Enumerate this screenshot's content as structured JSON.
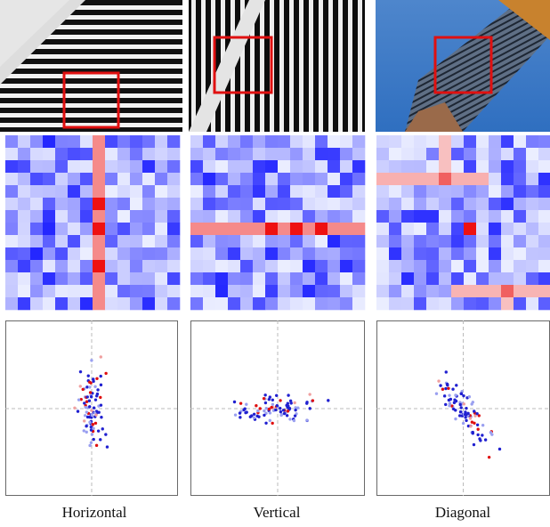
{
  "figure": {
    "captions": [
      "Horizontal",
      "Vertical",
      "Diagonal"
    ]
  }
}
